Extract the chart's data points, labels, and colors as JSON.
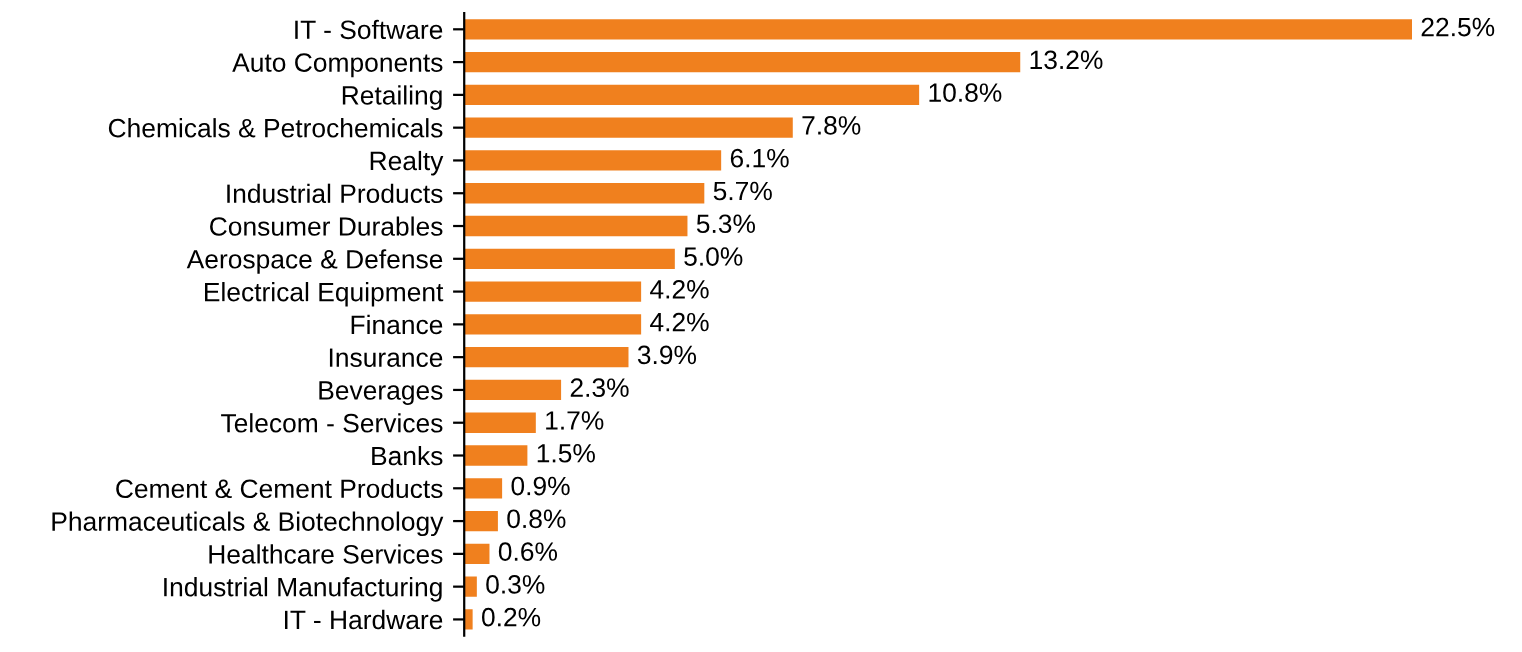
{
  "chart_data": {
    "type": "bar",
    "orientation": "horizontal",
    "color": "#f0801e",
    "categories": [
      "IT - Software",
      "Auto Components",
      "Retailing",
      "Chemicals & Petrochemicals",
      "Realty",
      "Industrial Products",
      "Consumer Durables",
      "Aerospace & Defense",
      "Electrical Equipment",
      "Finance",
      "Insurance",
      "Beverages",
      "Telecom - Services",
      "Banks",
      "Cement & Cement Products",
      "Pharmaceuticals & Biotechnology",
      "Healthcare Services",
      "Industrial Manufacturing",
      "IT - Hardware"
    ],
    "values": [
      22.5,
      13.2,
      10.8,
      7.8,
      6.1,
      5.7,
      5.3,
      5.0,
      4.2,
      4.2,
      3.9,
      2.3,
      1.7,
      1.5,
      0.9,
      0.8,
      0.6,
      0.3,
      0.2
    ],
    "value_labels": [
      "22.5%",
      "13.2%",
      "10.8%",
      "7.8%",
      "6.1%",
      "5.7%",
      "5.3%",
      "5.0%",
      "4.2%",
      "4.2%",
      "3.9%",
      "2.3%",
      "1.7%",
      "1.5%",
      "0.9%",
      "0.8%",
      "0.6%",
      "0.3%",
      "0.2%"
    ],
    "grid": false,
    "legend": false
  }
}
